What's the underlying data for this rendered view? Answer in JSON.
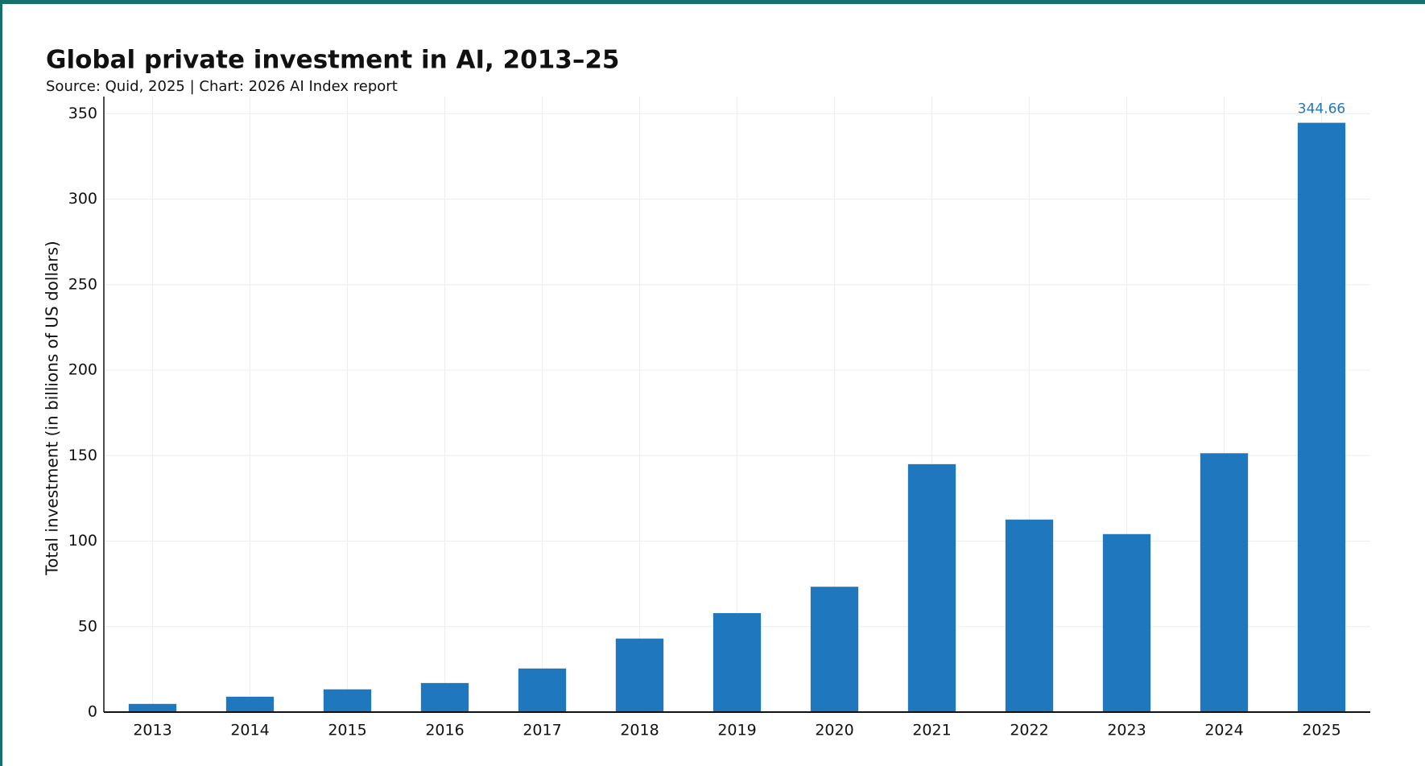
{
  "chart_data": {
    "type": "bar",
    "title": "Global private investment in AI, 2013–25",
    "subtitle": "Source: Quid, 2025 | Chart: 2026 AI Index report",
    "y_label": "Total investment (in billions of US dollars)",
    "categories": [
      "2013",
      "2014",
      "2015",
      "2016",
      "2017",
      "2018",
      "2019",
      "2020",
      "2021",
      "2022",
      "2023",
      "2024",
      "2025"
    ],
    "values": [
      4.8,
      9.0,
      13.3,
      17.0,
      25.5,
      43.0,
      57.9,
      73.3,
      145.0,
      112.6,
      104.1,
      151.4,
      344.66
    ],
    "value_labels": [
      null,
      null,
      null,
      null,
      null,
      null,
      null,
      null,
      null,
      null,
      null,
      null,
      "344.66"
    ],
    "color": "#1f77bd",
    "ylim": [
      0,
      360
    ],
    "yticks": [
      0,
      50,
      100,
      150,
      200,
      250,
      300,
      350
    ],
    "grid": true
  }
}
